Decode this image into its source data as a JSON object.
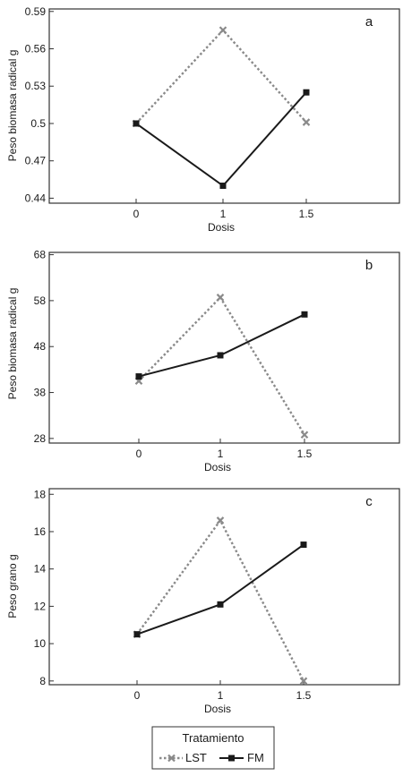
{
  "chart_data": [
    {
      "type": "line",
      "panel_label": "a",
      "xlabel": "Dosis",
      "ylabel": "Peso biomasa radical g",
      "categories": [
        "0",
        "1",
        "1.5"
      ],
      "yticks": [
        "0.44",
        "0.47",
        "0.5",
        "0.53",
        "0.56",
        "0.59"
      ],
      "ylim": [
        0.436,
        0.592
      ],
      "series": [
        {
          "name": "LST",
          "values": [
            0.5,
            0.575,
            0.501
          ]
        },
        {
          "name": "FM",
          "values": [
            0.5,
            0.45,
            0.525
          ]
        }
      ]
    },
    {
      "type": "line",
      "panel_label": "b",
      "xlabel": "Dosis",
      "ylabel": "Peso biomasa radical g",
      "categories": [
        "0",
        "1",
        "1.5"
      ],
      "yticks": [
        "28",
        "38",
        "48",
        "58",
        "68"
      ],
      "ylim": [
        27,
        68.5
      ],
      "series": [
        {
          "name": "LST",
          "values": [
            40.5,
            58.7,
            28.8
          ]
        },
        {
          "name": "FM",
          "values": [
            41.5,
            46.1,
            55.0
          ]
        }
      ]
    },
    {
      "type": "line",
      "panel_label": "c",
      "xlabel": "Dosis",
      "ylabel": "Peso grano g",
      "categories": [
        "0",
        "1",
        "1.5"
      ],
      "yticks": [
        "8",
        "10",
        "12",
        "14",
        "16",
        "18"
      ],
      "ylim": [
        7.8,
        18.3
      ],
      "series": [
        {
          "name": "LST",
          "values": [
            10.5,
            16.6,
            8.0
          ]
        },
        {
          "name": "FM",
          "values": [
            10.5,
            12.1,
            15.3
          ]
        }
      ]
    }
  ],
  "legend": {
    "title": "Tratamiento",
    "items": [
      {
        "label": "LST",
        "color": "#8a8a8a",
        "dashed": true,
        "marker": "x"
      },
      {
        "label": "FM",
        "color": "#1a1a1a",
        "dashed": false,
        "marker": "square"
      }
    ]
  }
}
